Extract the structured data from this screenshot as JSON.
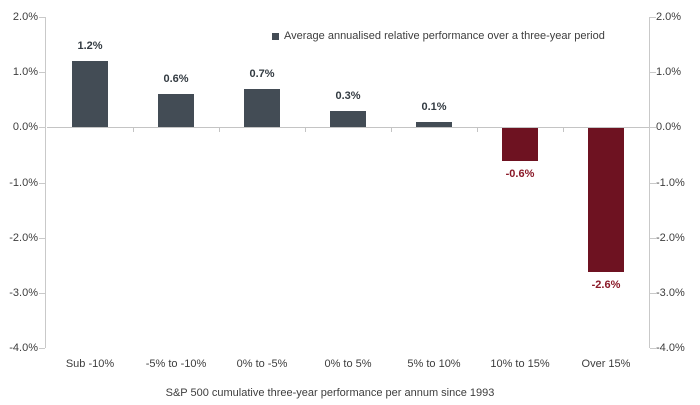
{
  "chart_data": {
    "type": "bar",
    "title": "",
    "legend": "Average annualised relative performance over a three-year period",
    "legend_position": "top-right",
    "categories": [
      "Sub -10%",
      "-5% to -10%",
      "0% to -5%",
      "0% to 5%",
      "5% to 10%",
      "10% to 15%",
      "Over 15%"
    ],
    "values": [
      1.2,
      0.6,
      0.7,
      0.3,
      0.1,
      -0.6,
      -2.6
    ],
    "value_labels": [
      "1.2%",
      "0.6%",
      "0.7%",
      "0.3%",
      "0.1%",
      "-0.6%",
      "-2.6%"
    ],
    "xlabel": "S&P 500 cumulative three-year performance per annum since 1993",
    "ylabel": "",
    "ylim": [
      -4,
      2
    ],
    "ytick_values": [
      2,
      1,
      0,
      -1,
      -2,
      -3,
      -4
    ],
    "ytick_labels": [
      "2.0%",
      "1.0%",
      "0.0%",
      "-1.0%",
      "-2.0%",
      "-3.0%",
      "-4.0%"
    ],
    "right_axis_mirror": true,
    "grid": false,
    "colors": {
      "positive_bar": "#434c55",
      "negative_bar": "#6e1221",
      "positive_value_label": "#333b42",
      "negative_value_label": "#8b1a29",
      "axis_line": "#c9c9c9",
      "zero_line": "#c4c4c4",
      "axis_text": "#3d3d3d"
    }
  }
}
